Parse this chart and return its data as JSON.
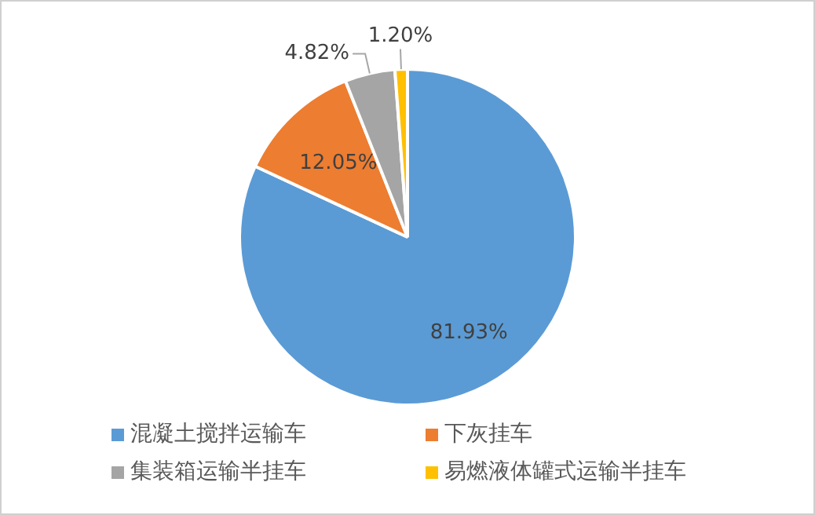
{
  "chart_data": {
    "type": "pie",
    "categories": [
      "混凝土搅拌运输车",
      "下灰挂车",
      "集装箱运输半挂车",
      "易燃液体罐式运输半挂车"
    ],
    "values": [
      81.93,
      12.05,
      4.82,
      1.2
    ],
    "colors": [
      "#5b9bd5",
      "#ed7d31",
      "#a5a5a5",
      "#ffc000"
    ],
    "value_labels": [
      "81.93%",
      "12.05%",
      "4.82%",
      "1.20%"
    ],
    "legend": "bottom"
  }
}
